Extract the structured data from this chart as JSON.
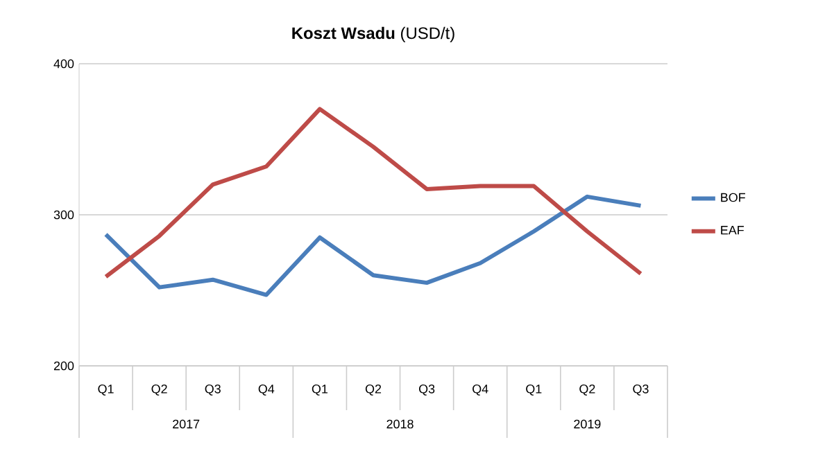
{
  "chart_data": {
    "type": "line",
    "title": "**Koszt Wsadu** (USD/t)",
    "categories": [
      "Q1",
      "Q2",
      "Q3",
      "Q4",
      "Q1",
      "Q2",
      "Q3",
      "Q4",
      "Q1",
      "Q2",
      "Q3"
    ],
    "annotations": [
      "2017",
      "2018",
      "2019"
    ],
    "series": [
      {
        "name": "BOF",
        "color": "#4a7ebb",
        "values": [
          287,
          252,
          257,
          247,
          285,
          260,
          255,
          268,
          289,
          312,
          306
        ]
      },
      {
        "name": "EAF",
        "color": "#be4b48",
        "values": [
          259,
          286,
          320,
          332,
          370,
          345,
          317,
          319,
          319,
          289,
          261
        ]
      }
    ],
    "ylim": [
      200,
      400
    ],
    "yticks": [
      200,
      300,
      400
    ],
    "grid": "y",
    "legend": "right"
  }
}
